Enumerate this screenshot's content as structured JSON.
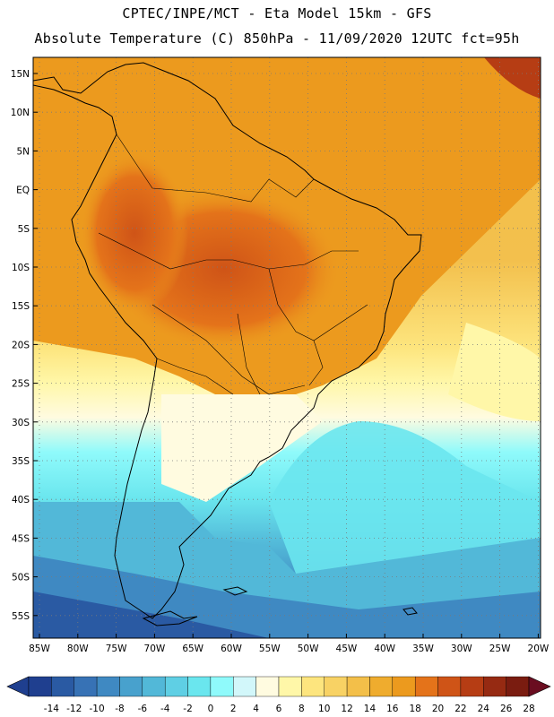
{
  "header": {
    "line1": "CPTEC/INPE/MCT -  Eta Model 15km - GFS",
    "line2": "Absolute Temperature (C) 850hPa - 11/09/2020 12UTC fct=95h"
  },
  "map": {
    "lat_labels": [
      "15N",
      "10N",
      "5N",
      "EQ",
      "5S",
      "10S",
      "15S",
      "20S",
      "25S",
      "30S",
      "35S",
      "40S",
      "45S",
      "50S",
      "55S"
    ],
    "lon_labels": [
      "85W",
      "80W",
      "75W",
      "70W",
      "65W",
      "60W",
      "55W",
      "50W",
      "45W",
      "40W",
      "35W",
      "30W",
      "25W",
      "20W"
    ]
  },
  "colorbar": {
    "labels": [
      "-14",
      "-12",
      "-10",
      "-8",
      "-6",
      "-4",
      "-2",
      "0",
      "2",
      "4",
      "6",
      "8",
      "10",
      "12",
      "14",
      "16",
      "18",
      "20",
      "22",
      "24",
      "26",
      "28"
    ],
    "colors": [
      "#1f3f8f",
      "#2a5aa3",
      "#3772b5",
      "#3f89c2",
      "#48a1cd",
      "#52b8d8",
      "#5fcfe4",
      "#6ae6ee",
      "#8ffafb",
      "#d2f7fa",
      "#fffbe0",
      "#fff7a8",
      "#fde57e",
      "#f8d264",
      "#f3bf49",
      "#efac2e",
      "#ec9a1e",
      "#e4731a",
      "#cf5417",
      "#b63d14",
      "#962a12",
      "#7a1c10"
    ]
  }
}
